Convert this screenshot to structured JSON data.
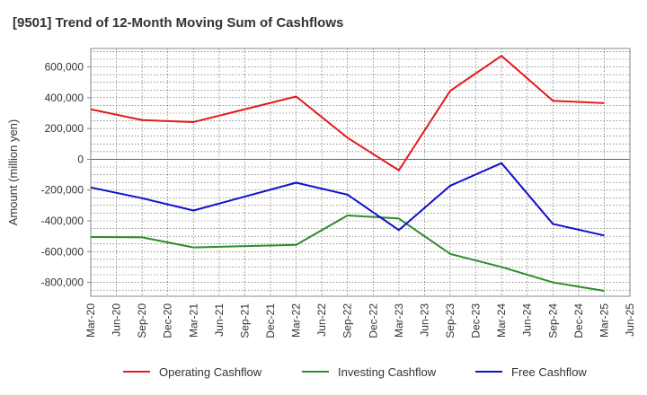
{
  "chart_data": {
    "type": "line",
    "title": "[9501]  Trend of 12-Month Moving Sum of Cashflows",
    "xlabel": "",
    "ylabel": "Amount (million yen)",
    "categories": [
      "Mar-20",
      "Jun-20",
      "Sep-20",
      "Dec-20",
      "Mar-21",
      "Jun-21",
      "Sep-21",
      "Dec-21",
      "Mar-22",
      "Jun-22",
      "Sep-22",
      "Dec-22",
      "Mar-23",
      "Jun-23",
      "Sep-23",
      "Dec-23",
      "Mar-24",
      "Jun-24",
      "Sep-24",
      "Dec-24",
      "Mar-25",
      "Jun-25"
    ],
    "ylim": [
      -890000,
      720000
    ],
    "yticks": [
      600000,
      400000,
      200000,
      0,
      -200000,
      -400000,
      -600000,
      -800000
    ],
    "ytick_labels": [
      "600,000",
      "400,000",
      "200,000",
      "0",
      "-200,000",
      "-400,000",
      "-600,000",
      "-800,000"
    ],
    "grid": true,
    "legend_position": "bottom",
    "series": [
      {
        "name": "Operating Cashflow",
        "color": "#e41a1c",
        "values": [
          325000,
          null,
          255000,
          null,
          242000,
          null,
          null,
          null,
          408000,
          null,
          140000,
          null,
          -72000,
          null,
          445000,
          null,
          672000,
          null,
          380000,
          null,
          365000,
          null
        ]
      },
      {
        "name": "Investing Cashflow",
        "color": "#2e8b2e",
        "values": [
          -505000,
          null,
          -507000,
          null,
          -573000,
          null,
          null,
          null,
          -556000,
          null,
          -365000,
          null,
          -385000,
          null,
          -615000,
          null,
          -700000,
          null,
          -800000,
          null,
          -855000,
          null
        ]
      },
      {
        "name": "Free Cashflow",
        "color": "#1010cc",
        "values": [
          -183000,
          null,
          -253000,
          null,
          -333000,
          null,
          null,
          null,
          -152000,
          null,
          -230000,
          null,
          -460000,
          null,
          -172000,
          null,
          -25000,
          null,
          -420000,
          null,
          -495000,
          null
        ]
      }
    ]
  }
}
